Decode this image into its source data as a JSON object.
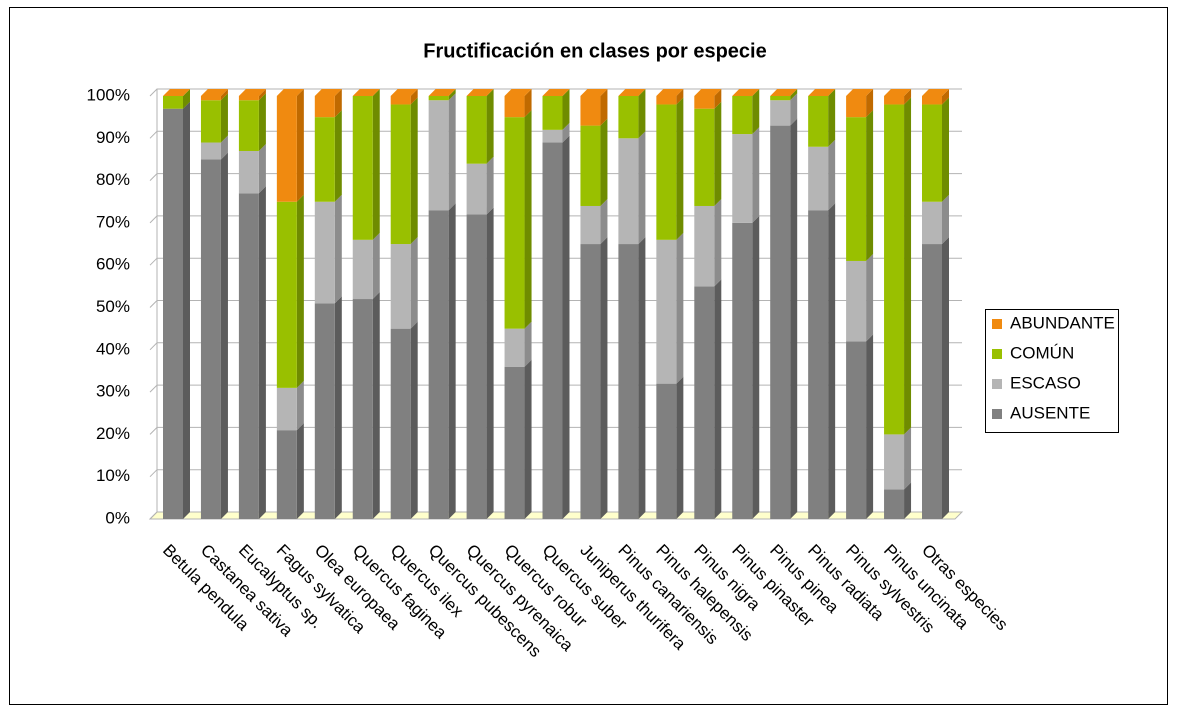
{
  "chart_data": {
    "type": "bar",
    "stacked": true,
    "title": "Fructificación en clases por especie",
    "categories": [
      "Betula pendula",
      "Castanea sativa",
      "Eucalyptus sp.",
      "Fagus sylvatica",
      "Olea europaea",
      "Quercus faginea",
      "Quercus ilex",
      "Quercus pubescens",
      "Quercus pyrenaica",
      "Quercus robur",
      "Quercus suber",
      "Juniperus thurifera",
      "Pinus canariensis",
      "Pinus halepensis",
      "Pinus nigra",
      "Pinus pinaster",
      "Pinus pinea",
      "Pinus radiata",
      "Pinus sylvestris",
      "Pinus uncinata",
      "Otras especies"
    ],
    "series": [
      {
        "name": "ABUNDANTE",
        "color": "#f08a10",
        "side": "#c06a00",
        "values": [
          0,
          1,
          1,
          25,
          5,
          0,
          2,
          0,
          0,
          5,
          0,
          7,
          0,
          2,
          3,
          0,
          0,
          0,
          5,
          2,
          2
        ]
      },
      {
        "name": "COMÚN",
        "color": "#99c000",
        "side": "#6f8c00",
        "values": [
          3,
          10,
          12,
          44,
          20,
          34,
          33,
          1,
          16,
          50,
          8,
          19,
          10,
          32,
          23,
          9,
          1,
          12,
          34,
          78,
          23
        ]
      },
      {
        "name": "ESCASO",
        "color": "#b5b5b5",
        "side": "#8c8c8c",
        "values": [
          0,
          4,
          10,
          10,
          24,
          14,
          20,
          26,
          12,
          9,
          3,
          9,
          25,
          34,
          19,
          21,
          6,
          15,
          19,
          13,
          10
        ]
      },
      {
        "name": "AUSENTE",
        "color": "#808080",
        "side": "#5c5c5c",
        "values": [
          97,
          85,
          77,
          21,
          51,
          52,
          45,
          73,
          72,
          36,
          89,
          65,
          65,
          32,
          55,
          70,
          93,
          73,
          42,
          7,
          65
        ]
      }
    ],
    "ylim": [
      0,
      100
    ],
    "yticks": [
      {
        "value": 0,
        "label": "0%"
      },
      {
        "value": 10,
        "label": "10%"
      },
      {
        "value": 20,
        "label": "20%"
      },
      {
        "value": 30,
        "label": "30%"
      },
      {
        "value": 40,
        "label": "40%"
      },
      {
        "value": 50,
        "label": "50%"
      },
      {
        "value": 60,
        "label": "60%"
      },
      {
        "value": 70,
        "label": "70%"
      },
      {
        "value": 80,
        "label": "80%"
      },
      {
        "value": 90,
        "label": "90%"
      },
      {
        "value": 100,
        "label": "100%"
      }
    ],
    "grid": true,
    "legend": "right"
  }
}
